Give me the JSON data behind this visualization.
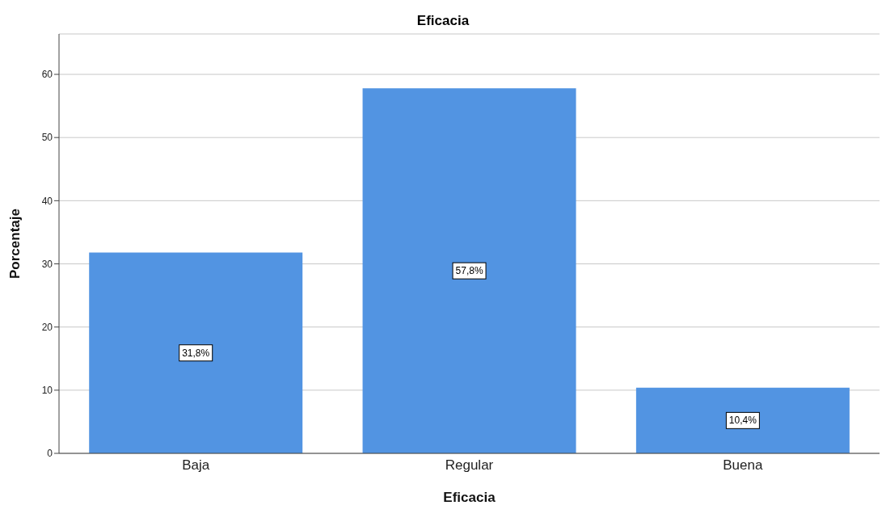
{
  "chart_data": {
    "type": "bar",
    "title": "Eficacia",
    "xlabel": "Eficacia",
    "ylabel": "Porcentaje",
    "categories": [
      "Baja",
      "Regular",
      "Buena"
    ],
    "values": [
      31.8,
      57.8,
      10.4
    ],
    "color": "#5294e2",
    "value_labels": [
      "31,8%",
      "57,8%",
      "10,4%"
    ],
    "ylim": [
      0,
      66.4
    ],
    "yticks": [
      0,
      10,
      20,
      30,
      40,
      50,
      60
    ],
    "grid": "y"
  }
}
